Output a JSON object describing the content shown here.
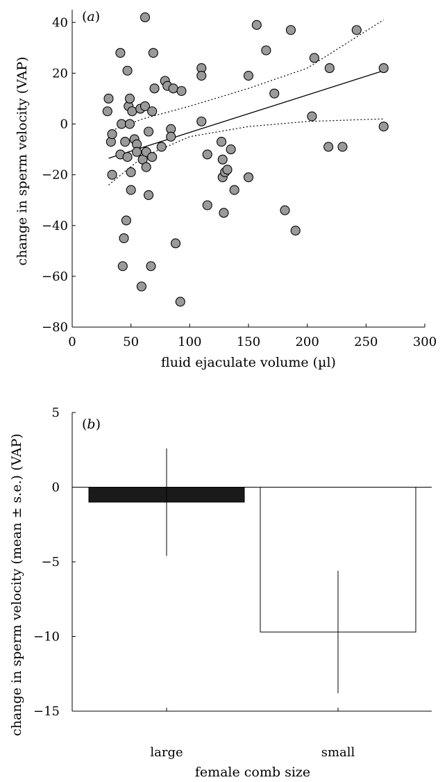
{
  "chart_data": [
    {
      "type": "scatter",
      "panel_label": "a",
      "xlabel": "fluid ejaculate volume (µl)",
      "ylabel": "change in sperm velocity (VAP)",
      "xlim": [
        0,
        300
      ],
      "ylim": [
        -80,
        45
      ],
      "xticks": [
        0,
        50,
        100,
        150,
        200,
        250,
        300
      ],
      "yticks": [
        -80,
        -60,
        -40,
        -20,
        0,
        20,
        40
      ],
      "point_color": "#9a9a9a",
      "points": [
        {
          "x": 30,
          "y": 5
        },
        {
          "x": 31,
          "y": 10
        },
        {
          "x": 33,
          "y": -7
        },
        {
          "x": 34,
          "y": -4
        },
        {
          "x": 34,
          "y": -20
        },
        {
          "x": 41,
          "y": 28
        },
        {
          "x": 41,
          "y": -12
        },
        {
          "x": 42,
          "y": 0
        },
        {
          "x": 43,
          "y": -56
        },
        {
          "x": 44,
          "y": -45
        },
        {
          "x": 45,
          "y": -7
        },
        {
          "x": 46,
          "y": -38
        },
        {
          "x": 47,
          "y": 21
        },
        {
          "x": 47,
          "y": -13
        },
        {
          "x": 48,
          "y": 7
        },
        {
          "x": 49,
          "y": 0
        },
        {
          "x": 49,
          "y": 10
        },
        {
          "x": 50,
          "y": -19
        },
        {
          "x": 50,
          "y": -26
        },
        {
          "x": 51,
          "y": 5
        },
        {
          "x": 53,
          "y": -6
        },
        {
          "x": 55,
          "y": -8
        },
        {
          "x": 55,
          "y": -11
        },
        {
          "x": 58,
          "y": 6
        },
        {
          "x": 59,
          "y": -64
        },
        {
          "x": 60,
          "y": -14
        },
        {
          "x": 62,
          "y": 42
        },
        {
          "x": 62,
          "y": 7
        },
        {
          "x": 63,
          "y": -11
        },
        {
          "x": 63,
          "y": -17
        },
        {
          "x": 65,
          "y": -3
        },
        {
          "x": 65,
          "y": -28
        },
        {
          "x": 67,
          "y": -56
        },
        {
          "x": 68,
          "y": 5
        },
        {
          "x": 68,
          "y": -13
        },
        {
          "x": 69,
          "y": 28
        },
        {
          "x": 70,
          "y": 14
        },
        {
          "x": 76,
          "y": -9
        },
        {
          "x": 79,
          "y": 17
        },
        {
          "x": 81,
          "y": 15
        },
        {
          "x": 84,
          "y": -2
        },
        {
          "x": 84,
          "y": -5
        },
        {
          "x": 86,
          "y": 14
        },
        {
          "x": 88,
          "y": -47
        },
        {
          "x": 92,
          "y": -70
        },
        {
          "x": 93,
          "y": 13
        },
        {
          "x": 110,
          "y": 22
        },
        {
          "x": 110,
          "y": 19
        },
        {
          "x": 110,
          "y": 1
        },
        {
          "x": 115,
          "y": -12
        },
        {
          "x": 115,
          "y": -32
        },
        {
          "x": 127,
          "y": -7
        },
        {
          "x": 128,
          "y": -14
        },
        {
          "x": 128,
          "y": -21
        },
        {
          "x": 129,
          "y": -35
        },
        {
          "x": 130,
          "y": -19
        },
        {
          "x": 132,
          "y": -18
        },
        {
          "x": 135,
          "y": -10
        },
        {
          "x": 138,
          "y": -26
        },
        {
          "x": 150,
          "y": 19
        },
        {
          "x": 150,
          "y": -21
        },
        {
          "x": 157,
          "y": 39
        },
        {
          "x": 165,
          "y": 29
        },
        {
          "x": 172,
          "y": 12
        },
        {
          "x": 181,
          "y": -34
        },
        {
          "x": 186,
          "y": 37
        },
        {
          "x": 190,
          "y": -42
        },
        {
          "x": 204,
          "y": 3
        },
        {
          "x": 206,
          "y": 26
        },
        {
          "x": 218,
          "y": -9
        },
        {
          "x": 219,
          "y": 22
        },
        {
          "x": 230,
          "y": -9
        },
        {
          "x": 242,
          "y": 37
        },
        {
          "x": 265,
          "y": 22
        },
        {
          "x": 265,
          "y": -1
        }
      ],
      "fit_line": {
        "x": [
          31,
          265
        ],
        "y": [
          -13.5,
          21
        ]
      },
      "ci_upper": {
        "x": [
          31,
          60,
          100,
          150,
          200,
          265
        ],
        "y": [
          -3,
          2,
          7,
          14,
          22,
          41
        ]
      },
      "ci_lower": {
        "x": [
          31,
          60,
          100,
          150,
          200,
          265
        ],
        "y": [
          -24,
          -13,
          -5,
          -1,
          1,
          2
        ]
      }
    },
    {
      "type": "bar",
      "panel_label": "b",
      "xlabel": "female comb size",
      "ylabel": "change in sperm velocity (mean ± s.e.) (VAP)",
      "ylim": [
        -15,
        5
      ],
      "yticks": [
        5,
        0,
        -5,
        -10,
        -15
      ],
      "categories": [
        "large",
        "small"
      ],
      "values": [
        -1,
        -9.7
      ],
      "errors": [
        3.6,
        4.1
      ],
      "colors": [
        "#1a1a1a",
        "#ffffff"
      ]
    }
  ]
}
